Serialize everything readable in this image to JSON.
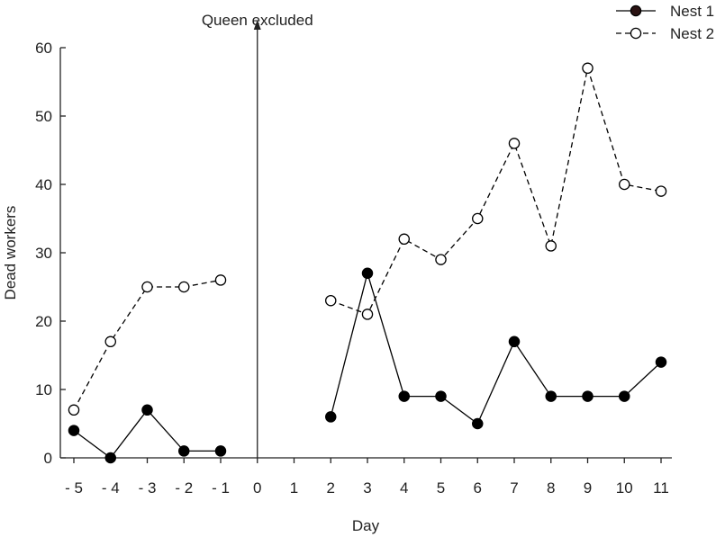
{
  "chart_data": {
    "type": "line",
    "xlabel": "Day",
    "ylabel": "Dead workers",
    "ylim": [
      0,
      60
    ],
    "yticks": [
      0,
      10,
      20,
      30,
      40,
      50,
      60
    ],
    "xlim": [
      -5,
      11
    ],
    "xticks": [
      -5,
      -4,
      -3,
      -2,
      -1,
      0,
      1,
      2,
      3,
      4,
      5,
      6,
      7,
      8,
      9,
      10,
      11
    ],
    "xtick_labels": [
      "- 5",
      "- 4",
      "- 3",
      "- 2",
      "- 1",
      "0",
      "1",
      "2",
      "3",
      "4",
      "5",
      "6",
      "7",
      "8",
      "9",
      "10",
      "11"
    ],
    "annotation": {
      "text": "Queen excluded",
      "x": 0
    },
    "legend": {
      "position": "top-right"
    },
    "grid": false,
    "series": [
      {
        "name": "Nest 1",
        "style": "solid",
        "marker": "filled-circle",
        "color": "#000000",
        "segments": [
          {
            "x": [
              -5,
              -4,
              -3,
              -2,
              -1
            ],
            "y": [
              4,
              0,
              7,
              1,
              1
            ]
          },
          {
            "x": [
              2,
              3,
              4,
              5,
              6,
              7,
              8,
              9,
              10,
              11
            ],
            "y": [
              6,
              27,
              9,
              9,
              5,
              17,
              9,
              9,
              9,
              14
            ]
          }
        ]
      },
      {
        "name": "Nest 2",
        "style": "dashed",
        "marker": "open-circle",
        "color": "#000000",
        "segments": [
          {
            "x": [
              -5,
              -4,
              -3,
              -2,
              -1
            ],
            "y": [
              7,
              17,
              25,
              25,
              26
            ]
          },
          {
            "x": [
              2,
              3,
              4,
              5,
              6,
              7,
              8,
              9,
              10,
              11
            ],
            "y": [
              23,
              21,
              32,
              29,
              35,
              46,
              31,
              57,
              40,
              39
            ]
          }
        ]
      }
    ]
  }
}
